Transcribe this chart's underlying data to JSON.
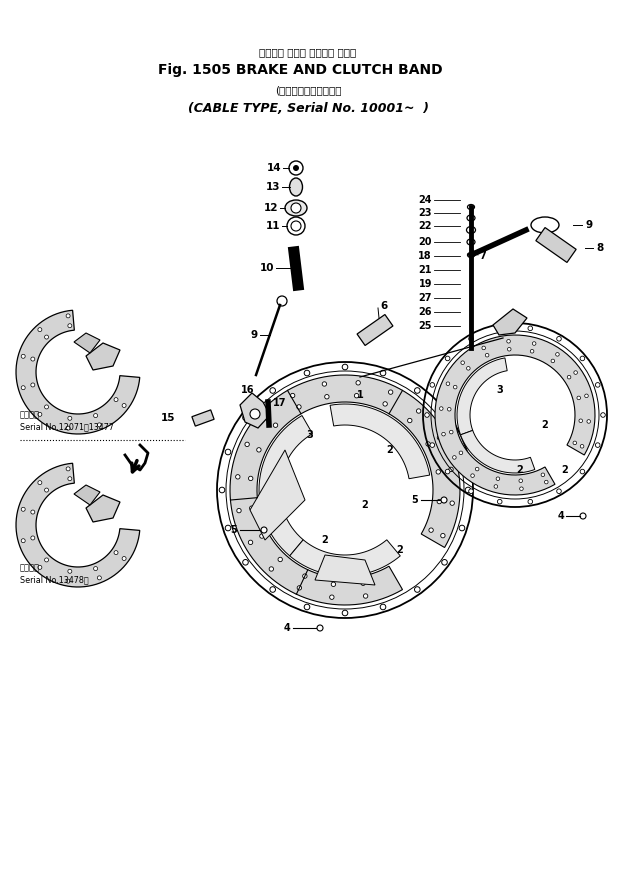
{
  "title_jp": "ブレーキ および クラッチ バンド",
  "title_en": "Fig. 1505 BRAKE AND CLUTCH BAND",
  "sub_jp": "(ケーブル式、適用号機",
  "sub_en": "(CABLE TYPE, Serial No. 10001~  )",
  "bg": "#ffffff",
  "lc": "#000000",
  "serial1_jp": "適用番号",
  "serial1_en": "Serial No.12071～13477",
  "serial2_jp": "適用番号",
  "serial2_en": "Serial No.13478～",
  "fig_w": 6.17,
  "fig_h": 8.71
}
